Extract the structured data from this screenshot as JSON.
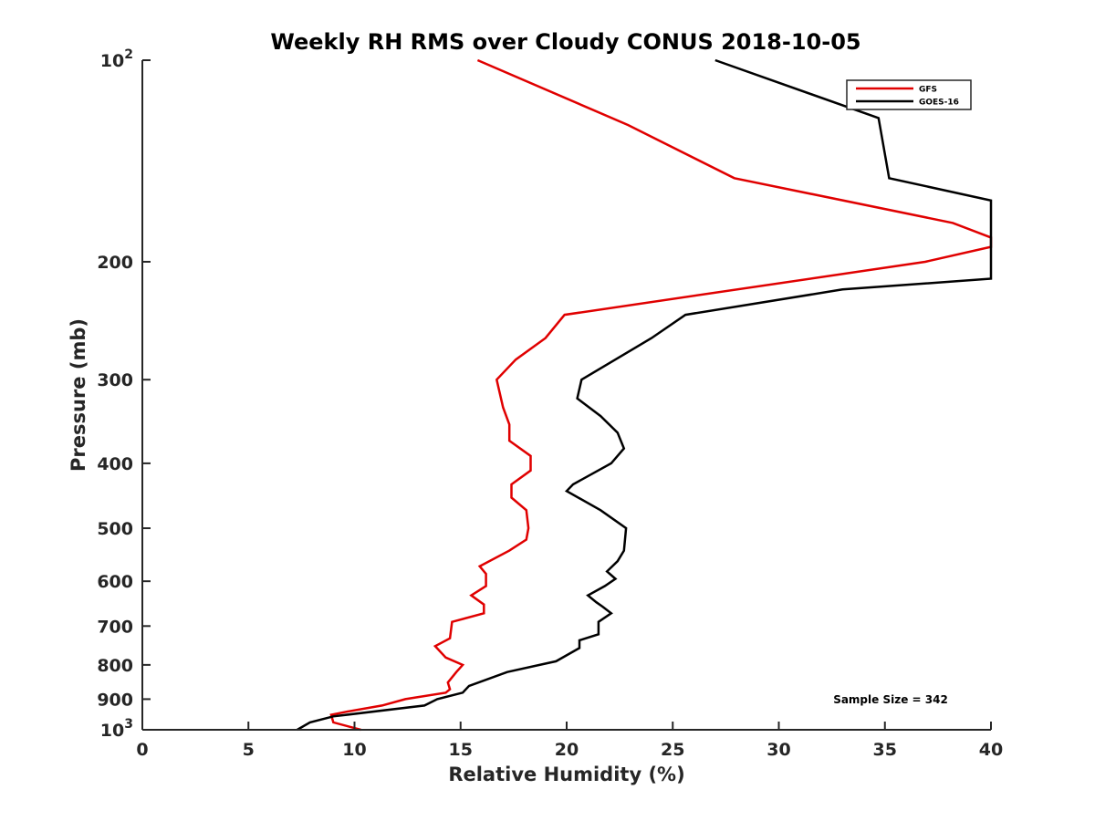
{
  "chart_data": {
    "type": "line",
    "title": "Weekly RH RMS over Cloudy CONUS 2018-10-05",
    "xlabel": "Relative Humidity (%)",
    "ylabel": "Pressure (mb)",
    "xlim": [
      0,
      40
    ],
    "ylim": [
      100,
      1000
    ],
    "y_scale": "log",
    "y_reversed": true,
    "x_ticks": [
      "0",
      "5",
      "10",
      "15",
      "20",
      "25",
      "30",
      "35",
      "40"
    ],
    "y_ticks": [
      {
        "value": 100,
        "base": "10",
        "exp": "2"
      },
      {
        "value": 200,
        "label": "200"
      },
      {
        "value": 300,
        "label": "300"
      },
      {
        "value": 400,
        "label": "400"
      },
      {
        "value": 500,
        "label": "500"
      },
      {
        "value": 600,
        "label": "600"
      },
      {
        "value": 700,
        "label": "700"
      },
      {
        "value": 800,
        "label": "800"
      },
      {
        "value": 900,
        "label": "900"
      },
      {
        "value": 1000,
        "base": "10",
        "exp": "3"
      }
    ],
    "grid": false,
    "legend_position": "top-right",
    "annotation": "Sample Size = 342",
    "series": [
      {
        "name": "GFS",
        "color": "#e00000",
        "points": [
          [
            15.8,
            100
          ],
          [
            22.9,
            125
          ],
          [
            27.9,
            150
          ],
          [
            38.2,
            175
          ],
          [
            40.0,
            184
          ],
          [
            40.0,
            190
          ],
          [
            36.9,
            200
          ],
          [
            19.9,
            240
          ],
          [
            19.0,
            260
          ],
          [
            17.6,
            280
          ],
          [
            16.7,
            300
          ],
          [
            17.0,
            330
          ],
          [
            17.3,
            350
          ],
          [
            17.3,
            370
          ],
          [
            18.3,
            390
          ],
          [
            18.3,
            410
          ],
          [
            17.4,
            430
          ],
          [
            17.4,
            450
          ],
          [
            18.1,
            470
          ],
          [
            18.2,
            500
          ],
          [
            18.1,
            520
          ],
          [
            17.3,
            540
          ],
          [
            15.9,
            570
          ],
          [
            16.2,
            585
          ],
          [
            16.2,
            610
          ],
          [
            15.5,
            630
          ],
          [
            16.1,
            650
          ],
          [
            16.1,
            670
          ],
          [
            14.6,
            690
          ],
          [
            14.5,
            730
          ],
          [
            13.8,
            750
          ],
          [
            14.3,
            780
          ],
          [
            15.1,
            800
          ],
          [
            14.8,
            820
          ],
          [
            14.4,
            850
          ],
          [
            14.5,
            870
          ],
          [
            14.3,
            880
          ],
          [
            12.4,
            900
          ],
          [
            11.3,
            920
          ],
          [
            9.6,
            940
          ],
          [
            8.9,
            950
          ],
          [
            9.0,
            975
          ],
          [
            10.3,
            1000
          ]
        ]
      },
      {
        "name": "GOES-16",
        "color": "#000000",
        "points": [
          [
            27.0,
            100
          ],
          [
            34.7,
            122
          ],
          [
            35.2,
            150
          ],
          [
            40.0,
            162
          ],
          [
            40.0,
            212
          ],
          [
            33.0,
            220
          ],
          [
            25.6,
            240
          ],
          [
            24.0,
            260
          ],
          [
            20.7,
            300
          ],
          [
            20.5,
            320
          ],
          [
            21.6,
            340
          ],
          [
            22.4,
            360
          ],
          [
            22.7,
            380
          ],
          [
            22.1,
            400
          ],
          [
            20.3,
            430
          ],
          [
            20.0,
            440
          ],
          [
            21.6,
            470
          ],
          [
            22.8,
            500
          ],
          [
            22.7,
            540
          ],
          [
            22.4,
            560
          ],
          [
            21.9,
            580
          ],
          [
            22.3,
            595
          ],
          [
            21.8,
            610
          ],
          [
            21.0,
            630
          ],
          [
            21.4,
            645
          ],
          [
            21.7,
            655
          ],
          [
            22.1,
            670
          ],
          [
            21.5,
            690
          ],
          [
            21.5,
            720
          ],
          [
            20.6,
            735
          ],
          [
            20.6,
            755
          ],
          [
            19.5,
            790
          ],
          [
            17.2,
            820
          ],
          [
            15.4,
            860
          ],
          [
            15.1,
            880
          ],
          [
            13.9,
            900
          ],
          [
            13.3,
            920
          ],
          [
            9.0,
            955
          ],
          [
            7.9,
            975
          ],
          [
            7.3,
            1000
          ]
        ]
      }
    ]
  }
}
